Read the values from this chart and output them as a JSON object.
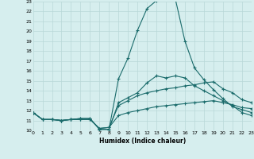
{
  "xlabel": "Humidex (Indice chaleur)",
  "bg_color": "#d6eeee",
  "grid_color": "#b8d8d8",
  "line_color": "#1a6b6b",
  "xmin": 0,
  "xmax": 23,
  "ymin": 10,
  "ymax": 23,
  "lines": [
    {
      "x": [
        0,
        1,
        2,
        3,
        4,
        5,
        6,
        7,
        8,
        9,
        10,
        11,
        12,
        13,
        14,
        15,
        16,
        17,
        18,
        19,
        20,
        21,
        22,
        23
      ],
      "y": [
        11.8,
        11.1,
        11.1,
        11.0,
        11.1,
        11.1,
        11.1,
        10.2,
        10.3,
        11.5,
        11.8,
        12.0,
        12.2,
        12.4,
        12.5,
        12.6,
        12.7,
        12.8,
        12.9,
        13.0,
        12.8,
        12.6,
        12.3,
        12.2
      ]
    },
    {
      "x": [
        0,
        1,
        2,
        3,
        4,
        5,
        6,
        7,
        8,
        9,
        10,
        11,
        12,
        13,
        14,
        15,
        16,
        17,
        18,
        19,
        20,
        21,
        22,
        23
      ],
      "y": [
        11.8,
        11.1,
        11.1,
        11.0,
        11.1,
        11.1,
        11.1,
        10.2,
        10.3,
        12.5,
        13.0,
        13.5,
        13.8,
        14.0,
        14.2,
        14.3,
        14.5,
        14.6,
        14.8,
        14.9,
        14.2,
        13.8,
        13.1,
        12.8
      ]
    },
    {
      "x": [
        0,
        1,
        2,
        3,
        4,
        5,
        6,
        7,
        8,
        9,
        10,
        11,
        12,
        13,
        14,
        15,
        16,
        17,
        18,
        19,
        20,
        21,
        22,
        23
      ],
      "y": [
        11.8,
        11.1,
        11.1,
        11.0,
        11.1,
        11.2,
        11.2,
        10.1,
        10.1,
        12.8,
        13.3,
        13.8,
        14.8,
        15.5,
        15.3,
        15.5,
        15.3,
        14.5,
        14.0,
        13.5,
        13.0,
        12.5,
        11.8,
        11.5
      ]
    },
    {
      "x": [
        0,
        1,
        2,
        3,
        4,
        5,
        6,
        7,
        8,
        9,
        10,
        11,
        12,
        13,
        14,
        15,
        16,
        17,
        18,
        19,
        20,
        21,
        22,
        23
      ],
      "y": [
        11.8,
        11.1,
        11.1,
        11.0,
        11.1,
        11.2,
        11.2,
        10.1,
        10.1,
        15.2,
        17.3,
        20.1,
        22.3,
        23.1,
        23.3,
        23.2,
        19.0,
        16.3,
        15.1,
        14.1,
        13.2,
        12.4,
        12.1,
        11.8
      ]
    }
  ]
}
